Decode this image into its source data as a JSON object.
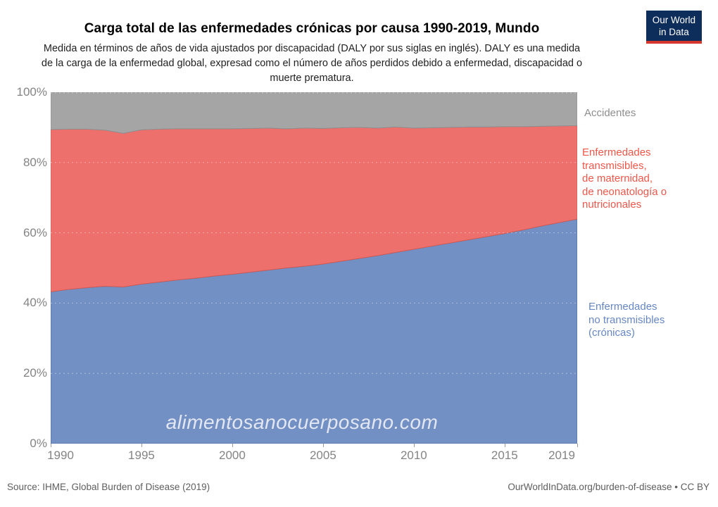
{
  "logo": {
    "line1": "Our World",
    "line2": "in Data",
    "bg": "#0d2e5a",
    "bar": "#d7382e"
  },
  "header": {
    "title": "Carga total de las enfermedades crónicas por causa 1990-2019, Mundo",
    "subtitle": "Medida en términos de años de vida ajustados por discapacidad (DALY por sus siglas en inglés). DALY es una medida de la carga de la enfermedad global, expresad como el número de años perdidos debido a enfermedad, discapacidad o muerte prematura."
  },
  "chart_data": {
    "type": "area",
    "stacked": true,
    "unit": "%",
    "grid": "dashed horizontal overlay",
    "legend_position": "right",
    "ylim": [
      0,
      100
    ],
    "y_ticks": [
      "100%",
      "80%",
      "60%",
      "40%",
      "20%",
      "0%"
    ],
    "x_ticks": [
      1990,
      1995,
      2000,
      2005,
      2010,
      2015,
      2019
    ],
    "x_tick_labels": [
      "1990",
      "1995",
      "2000",
      "2005",
      "2010",
      "2015",
      "2019"
    ],
    "x": [
      1990,
      1991,
      1992,
      1993,
      1994,
      1995,
      1996,
      1997,
      1998,
      1999,
      2000,
      2001,
      2002,
      2003,
      2004,
      2005,
      2006,
      2007,
      2008,
      2009,
      2010,
      2011,
      2012,
      2013,
      2014,
      2015,
      2016,
      2017,
      2018,
      2019
    ],
    "series": [
      {
        "id": "noncommunicable",
        "name": "Enfermedades no transmisibles (crónicas)",
        "label_lines": [
          "Enfermedades",
          "no transmisibles",
          "(crónicas)"
        ],
        "color": "#7390c4",
        "edge": "#4a6aa0",
        "label_color": "#6787c4",
        "values": [
          43.2,
          43.9,
          44.4,
          44.8,
          44.6,
          45.4,
          46.0,
          46.6,
          47.1,
          47.7,
          48.2,
          48.8,
          49.4,
          50.0,
          50.5,
          51.1,
          51.9,
          52.7,
          53.5,
          54.4,
          55.3,
          56.2,
          57.1,
          58.0,
          58.9,
          59.8,
          60.8,
          61.9,
          62.9,
          63.9
        ]
      },
      {
        "id": "communicable",
        "name": "Enfermedades transmisibles, de maternidad, de neonatología o nutricionales",
        "label_lines": [
          "Enfermedades",
          "transmisibles,",
          "de maternidad,",
          "de neonatología o",
          "nutricionales"
        ],
        "color": "#ee706d",
        "edge": "#cf5a55",
        "label_color": "#f0564a",
        "values": [
          46.2,
          45.6,
          45.1,
          44.4,
          43.7,
          43.9,
          43.5,
          43.0,
          42.5,
          41.9,
          41.4,
          40.9,
          40.4,
          39.6,
          39.3,
          38.6,
          38.0,
          37.3,
          36.3,
          35.7,
          34.5,
          33.7,
          32.9,
          32.1,
          31.2,
          30.4,
          29.4,
          28.4,
          27.5,
          26.6
        ]
      },
      {
        "id": "injuries",
        "name": "Accidentes",
        "label_lines": [
          "Accidentes"
        ],
        "color": "#a5a5a5",
        "edge": "#8f8f8f",
        "label_color": "#8e8e8e",
        "values": [
          10.6,
          10.5,
          10.5,
          10.8,
          11.7,
          10.7,
          10.5,
          10.4,
          10.4,
          10.4,
          10.4,
          10.3,
          10.2,
          10.4,
          10.2,
          10.3,
          10.1,
          10.0,
          10.2,
          9.9,
          10.2,
          10.1,
          10.0,
          9.9,
          9.9,
          9.8,
          9.8,
          9.7,
          9.6,
          9.5
        ]
      }
    ]
  },
  "watermark": {
    "text": "alimentosanocuerposano.com"
  },
  "footer": {
    "source": "Source: IHME, Global Burden of Disease (2019)",
    "license": "OurWorldInData.org/burden-of-disease • CC BY"
  }
}
